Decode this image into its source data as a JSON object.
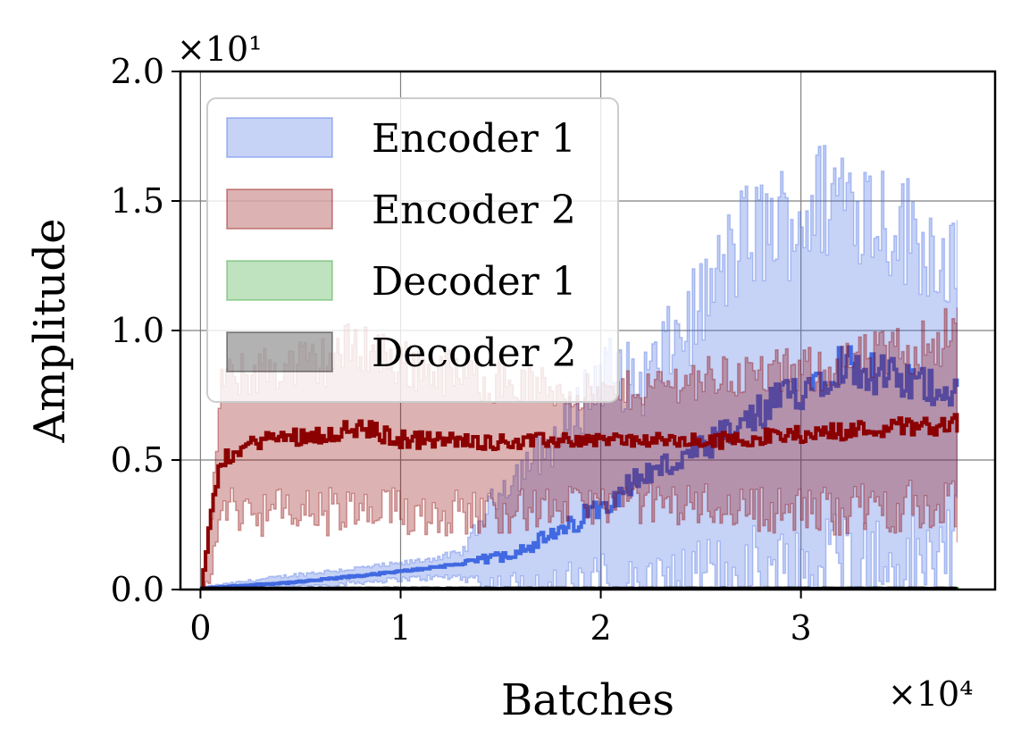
{
  "chart_data": {
    "type": "area",
    "title": "",
    "xlabel": "Batches",
    "ylabel": "Amplitude",
    "x_scale_label": "×10⁴",
    "y_scale_label": "×10¹",
    "xlim": [
      -0.1,
      3.97
    ],
    "ylim": [
      0.0,
      2.0
    ],
    "x_ticks": [
      0,
      1,
      2,
      3
    ],
    "x_tick_labels": [
      "0",
      "1",
      "2",
      "3"
    ],
    "y_ticks": [
      0.0,
      0.5,
      1.0,
      1.5,
      2.0
    ],
    "y_tick_labels": [
      "0.0",
      "0.5",
      "1.0",
      "1.5",
      "2.0"
    ],
    "grid": true,
    "legend_position": "top-left",
    "series": [
      {
        "name": "Encoder 1",
        "color": "#4169e1",
        "x": [
          0.0,
          0.5,
          1.0,
          1.3,
          1.5,
          1.8,
          2.0,
          2.2,
          2.5,
          2.7,
          3.0,
          3.2,
          3.5,
          3.78
        ],
        "mean": [
          0.005,
          0.03,
          0.07,
          0.1,
          0.13,
          0.22,
          0.33,
          0.44,
          0.53,
          0.63,
          0.78,
          0.88,
          0.8,
          0.77
        ],
        "lower": [
          0.0,
          0.01,
          0.04,
          0.05,
          0.0,
          0.0,
          0.0,
          0.0,
          0.0,
          0.05,
          0.05,
          0.1,
          0.05,
          0.18
        ],
        "upper": [
          0.01,
          0.06,
          0.1,
          0.14,
          0.4,
          0.6,
          0.85,
          0.8,
          1.1,
          1.35,
          1.45,
          1.55,
          1.4,
          1.25
        ]
      },
      {
        "name": "Encoder 2",
        "color": "#8b0000",
        "x": [
          0.0,
          0.05,
          0.1,
          0.3,
          0.6,
          0.8,
          1.0,
          1.5,
          2.0,
          2.5,
          3.0,
          3.5,
          3.78
        ],
        "mean": [
          0.0,
          0.3,
          0.5,
          0.58,
          0.6,
          0.62,
          0.58,
          0.57,
          0.58,
          0.57,
          0.6,
          0.63,
          0.64
        ],
        "lower": [
          0.0,
          0.05,
          0.32,
          0.3,
          0.3,
          0.28,
          0.3,
          0.3,
          0.33,
          0.33,
          0.3,
          0.32,
          0.3
        ],
        "upper": [
          0.0,
          0.3,
          0.8,
          0.85,
          0.88,
          0.95,
          0.87,
          0.8,
          0.75,
          0.82,
          0.84,
          0.92,
          1.0
        ]
      },
      {
        "name": "Decoder 1",
        "color": "#2ca02c",
        "x": [
          0.0,
          3.78
        ],
        "mean": [
          0.002,
          0.002
        ],
        "lower": [
          0.0,
          0.0
        ],
        "upper": [
          0.004,
          0.004
        ]
      },
      {
        "name": "Decoder 2",
        "color": "#000000",
        "x": [
          0.0,
          3.78
        ],
        "mean": [
          0.004,
          0.004
        ],
        "lower": [
          0.0,
          0.0
        ],
        "upper": [
          0.008,
          0.008
        ]
      }
    ]
  }
}
